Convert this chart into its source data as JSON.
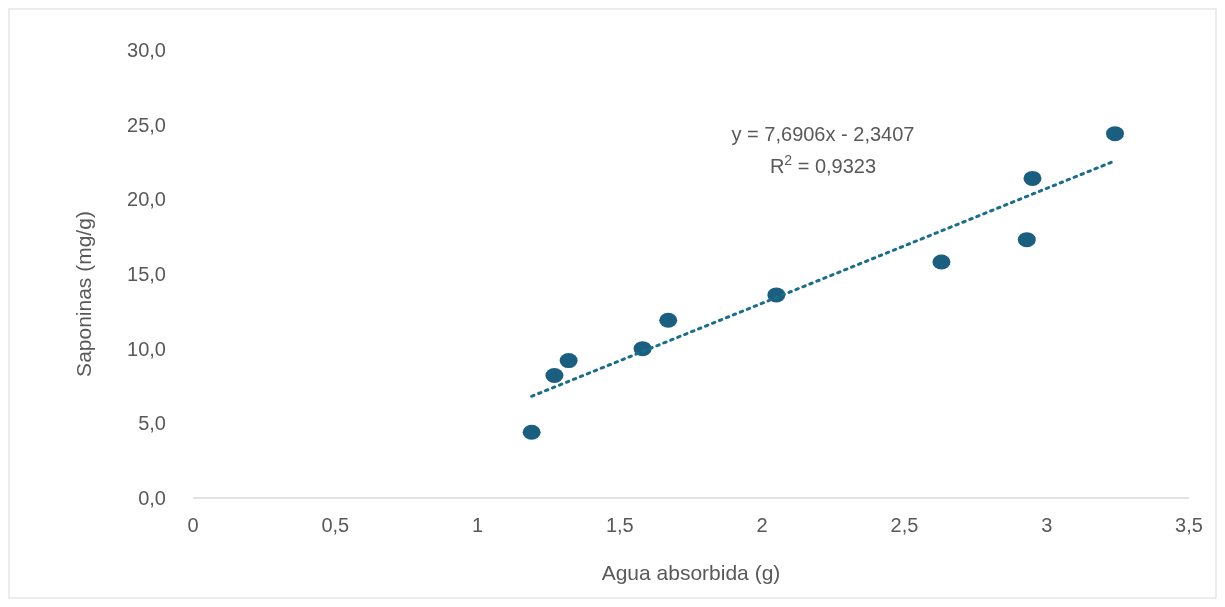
{
  "chart_data": {
    "type": "scatter",
    "xlabel": "Agua absorbida (g)",
    "ylabel": "Saponinas (mg/g)",
    "xlim": [
      0,
      3.5
    ],
    "ylim": [
      0,
      30
    ],
    "xticks": [
      0,
      {
        "value": 0.5,
        "label": "0,5"
      },
      1,
      {
        "value": 1.5,
        "label": "1,5"
      },
      2,
      {
        "value": 2.5,
        "label": "2,5"
      },
      3,
      {
        "value": 3.5,
        "label": "3,5"
      }
    ],
    "yticks": [
      {
        "value": 0,
        "label": "0,0"
      },
      {
        "value": 5,
        "label": "5,0"
      },
      {
        "value": 10,
        "label": "10,0"
      },
      {
        "value": 15,
        "label": "15,0"
      },
      {
        "value": 20,
        "label": "20,0"
      },
      {
        "value": 25,
        "label": "25,0"
      },
      {
        "value": 30,
        "label": "30,0"
      }
    ],
    "grid": false,
    "series": [
      {
        "marker": "circle",
        "color": "#1a5e80",
        "x": [
          1.19,
          1.27,
          1.32,
          1.58,
          1.67,
          2.05,
          2.63,
          2.93,
          2.95,
          3.24
        ],
        "values": [
          4.4,
          8.2,
          9.2,
          10.0,
          11.9,
          13.6,
          15.8,
          17.3,
          21.4,
          24.4
        ]
      },
      {
        "type": "line",
        "color": "#1a6e8c",
        "line_style": "dotted",
        "x": [
          1.19,
          3.24
        ],
        "values": [
          6.81,
          22.58
        ]
      }
    ],
    "annotations": [
      "y = 7,6906x - 2,3407",
      "R$^{2}$ = 0,9323"
    ]
  }
}
